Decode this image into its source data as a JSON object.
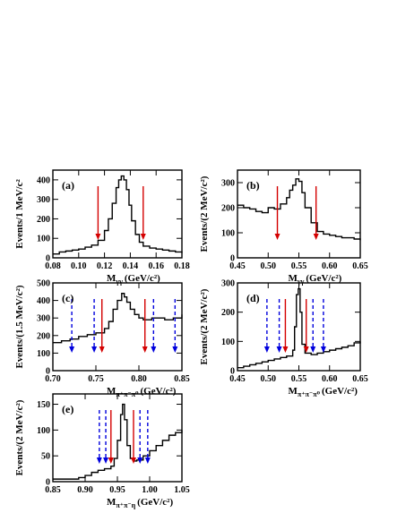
{
  "colors": {
    "histogram": "#000000",
    "signal_arrow": "#d40000",
    "sideband_arrow": "#0000dd",
    "axis": "#000000"
  },
  "chart_data": [
    {
      "type": "line",
      "panel_label": "(a)",
      "xlabel_main": "M",
      "xlabel_sub": "γγ",
      "xlabel_unit": "",
      "ylabel": "Events/1 MeV/c²",
      "xlim": [
        0.08,
        0.18
      ],
      "ylim": [
        0,
        450
      ],
      "xticks": [
        0.08,
        0.1,
        0.12,
        0.14,
        0.16,
        0.18
      ],
      "xtick_labels": [
        "0.08",
        "0.10",
        "0.12",
        "0.14",
        "0.16",
        "0.18"
      ],
      "yticks": [
        0,
        100,
        200,
        300,
        400
      ],
      "ytick_labels": [
        "0",
        "100",
        "200",
        "300",
        "400"
      ],
      "signal_cuts": [
        0.115,
        0.15
      ],
      "sideband_cuts": [],
      "x": [
        0.08,
        0.085,
        0.09,
        0.095,
        0.1,
        0.105,
        0.11,
        0.115,
        0.12,
        0.123,
        0.126,
        0.129,
        0.131,
        0.133,
        0.135,
        0.137,
        0.139,
        0.141,
        0.144,
        0.147,
        0.15,
        0.155,
        0.16,
        0.165,
        0.17,
        0.175,
        0.18
      ],
      "y": [
        20,
        30,
        35,
        40,
        45,
        55,
        65,
        90,
        140,
        200,
        280,
        360,
        400,
        420,
        400,
        350,
        270,
        190,
        120,
        80,
        60,
        50,
        45,
        40,
        35,
        30,
        25
      ]
    },
    {
      "type": "line",
      "panel_label": "(b)",
      "xlabel_main": "M",
      "xlabel_sub": "γγ",
      "xlabel_unit": "",
      "ylabel": "Events/(2 MeV/c²)",
      "xlim": [
        0.45,
        0.65
      ],
      "ylim": [
        0,
        350
      ],
      "xticks": [
        0.45,
        0.5,
        0.55,
        0.6,
        0.65
      ],
      "xtick_labels": [
        "0.45",
        "0.50",
        "0.55",
        "0.60",
        "0.65"
      ],
      "yticks": [
        0,
        100,
        200,
        300
      ],
      "ytick_labels": [
        "0",
        "100",
        "200",
        "300"
      ],
      "signal_cuts": [
        0.515,
        0.578
      ],
      "sideband_cuts": [],
      "x": [
        0.45,
        0.46,
        0.47,
        0.48,
        0.49,
        0.5,
        0.51,
        0.52,
        0.53,
        0.535,
        0.54,
        0.545,
        0.55,
        0.555,
        0.56,
        0.57,
        0.58,
        0.59,
        0.6,
        0.61,
        0.62,
        0.63,
        0.64,
        0.65
      ],
      "y": [
        210,
        200,
        195,
        185,
        180,
        200,
        195,
        215,
        240,
        270,
        290,
        315,
        305,
        260,
        200,
        140,
        105,
        95,
        90,
        85,
        80,
        80,
        75,
        70
      ]
    },
    {
      "type": "line",
      "panel_label": "(c)",
      "xlabel_main": "M",
      "xlabel_sub": "π⁺π⁻π⁰",
      "xlabel_unit": "",
      "ylabel": "Events/(1.5 MeV/c²)",
      "xlim": [
        0.7,
        0.85
      ],
      "ylim": [
        0,
        500
      ],
      "xticks": [
        0.7,
        0.75,
        0.8,
        0.85
      ],
      "xtick_labels": [
        "0.70",
        "0.75",
        "0.80",
        "0.85"
      ],
      "yticks": [
        0,
        100,
        200,
        300,
        400,
        500
      ],
      "ytick_labels": [
        "0",
        "100",
        "200",
        "300",
        "400",
        "500"
      ],
      "signal_cuts": [
        0.757,
        0.807
      ],
      "sideband_cuts": [
        0.722,
        0.748,
        0.817,
        0.842
      ],
      "x": [
        0.7,
        0.71,
        0.72,
        0.73,
        0.74,
        0.75,
        0.76,
        0.765,
        0.77,
        0.775,
        0.78,
        0.783,
        0.786,
        0.79,
        0.795,
        0.8,
        0.805,
        0.81,
        0.815,
        0.82,
        0.83,
        0.84,
        0.85
      ],
      "y": [
        160,
        170,
        180,
        195,
        205,
        215,
        240,
        280,
        350,
        400,
        440,
        420,
        390,
        350,
        320,
        300,
        290,
        290,
        300,
        300,
        290,
        300,
        320
      ]
    },
    {
      "type": "line",
      "panel_label": "(d)",
      "xlabel_main": "M",
      "xlabel_sub": "π⁺π⁻π⁰",
      "xlabel_unit": "",
      "ylabel": "Events/(2 MeV/c²)",
      "xlim": [
        0.45,
        0.65
      ],
      "ylim": [
        0,
        300
      ],
      "xticks": [
        0.45,
        0.5,
        0.55,
        0.6,
        0.65
      ],
      "xtick_labels": [
        "0.45",
        "0.50",
        "0.55",
        "0.60",
        "0.65"
      ],
      "yticks": [
        0,
        100,
        200,
        300
      ],
      "ytick_labels": [
        "0",
        "100",
        "200",
        "300"
      ],
      "signal_cuts": [
        0.528,
        0.562
      ],
      "sideband_cuts": [
        0.498,
        0.518,
        0.573,
        0.59
      ],
      "x": [
        0.45,
        0.46,
        0.47,
        0.48,
        0.49,
        0.5,
        0.51,
        0.52,
        0.53,
        0.54,
        0.543,
        0.546,
        0.549,
        0.552,
        0.555,
        0.56,
        0.57,
        0.58,
        0.59,
        0.6,
        0.61,
        0.62,
        0.63,
        0.64,
        0.65
      ],
      "y": [
        10,
        15,
        20,
        25,
        30,
        35,
        40,
        45,
        50,
        70,
        150,
        260,
        280,
        200,
        90,
        60,
        55,
        60,
        65,
        70,
        75,
        80,
        85,
        95,
        100
      ]
    },
    {
      "type": "line",
      "panel_label": "(e)",
      "xlabel_main": "M",
      "xlabel_sub": "π⁺π⁻η",
      "xlabel_unit": "",
      "ylabel": "Events/(2 MeV/c²)",
      "xlim": [
        0.85,
        1.05
      ],
      "ylim": [
        0,
        170
      ],
      "xticks": [
        0.85,
        0.9,
        0.95,
        1.0,
        1.05
      ],
      "xtick_labels": [
        "0.85",
        "0.90",
        "0.95",
        "1.00",
        "1.05"
      ],
      "yticks": [
        0,
        50,
        100,
        150
      ],
      "ytick_labels": [
        "0",
        "50",
        "100",
        "150"
      ],
      "signal_cuts": [
        0.94,
        0.975
      ],
      "sideband_cuts": [
        0.922,
        0.932,
        0.985,
        0.997
      ],
      "x": [
        0.85,
        0.86,
        0.87,
        0.88,
        0.89,
        0.9,
        0.91,
        0.92,
        0.93,
        0.94,
        0.945,
        0.95,
        0.955,
        0.958,
        0.961,
        0.965,
        0.97,
        0.975,
        0.98,
        0.99,
        1.0,
        1.01,
        1.02,
        1.03,
        1.04,
        1.05
      ],
      "y": [
        5,
        5,
        5,
        5,
        8,
        12,
        18,
        22,
        25,
        30,
        45,
        80,
        130,
        150,
        120,
        70,
        45,
        40,
        42,
        50,
        60,
        70,
        80,
        90,
        95,
        100
      ]
    }
  ]
}
